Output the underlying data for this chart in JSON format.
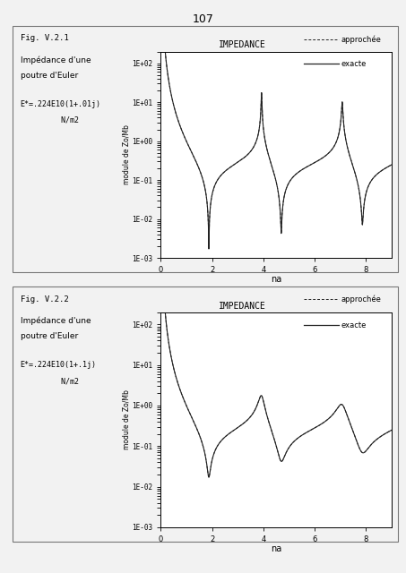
{
  "page_number": "107",
  "fig1_label": "Fig. V.2.1",
  "fig1_desc1": "Impédance d'une",
  "fig1_desc2": "poutre d'Euler",
  "fig1_param1": "E*=.224E10(1+.01j)",
  "fig1_param2": "         N/m2",
  "fig1_damping": 0.01,
  "fig2_label": "Fig. V.2.2",
  "fig2_desc1": "Impédance d'une",
  "fig2_desc2": "poutre d'Euler",
  "fig2_param1": "E*=.224E10(1+.1j)",
  "fig2_param2": "         N/m2",
  "fig2_damping": 0.1,
  "plot_title": "IMPEDANCE",
  "legend_approchee": "approchée",
  "legend_exacte": "exacte",
  "xlabel": "na",
  "ylabel": "module de Zo/Mb",
  "yticks": [
    0.001,
    0.01,
    0.1,
    1.0,
    10.0,
    100.0
  ],
  "ytick_labels": [
    "1E-03",
    "1E-02",
    "1E-01",
    "1E+00",
    "1E+01",
    "1E+02"
  ],
  "xticks": [
    0,
    2,
    4,
    6,
    8
  ],
  "xlim": [
    0,
    9
  ],
  "ylim_lo": 0.001,
  "ylim_hi": 200.0,
  "bg_color": "#f2f2f2",
  "plot_bg": "#ffffff",
  "line_color": "#222222",
  "box_color": "#aaaaaa"
}
